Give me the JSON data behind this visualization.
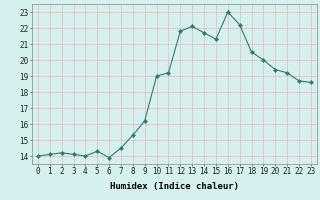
{
  "x": [
    0,
    1,
    2,
    3,
    4,
    5,
    6,
    7,
    8,
    9,
    10,
    11,
    12,
    13,
    14,
    15,
    16,
    17,
    18,
    19,
    20,
    21,
    22,
    23
  ],
  "y": [
    14.0,
    14.1,
    14.2,
    14.1,
    14.0,
    14.3,
    13.9,
    14.5,
    15.3,
    16.2,
    19.0,
    19.2,
    21.8,
    22.1,
    21.7,
    21.3,
    23.0,
    22.2,
    20.5,
    20.0,
    19.4,
    19.2,
    18.7,
    18.6
  ],
  "line_color": "#2e7d6e",
  "marker": "D",
  "marker_size": 2,
  "bg_color": "#d6f0ef",
  "grid_color_major": "#e8b8b8",
  "grid_color_minor": "#e8b8b8",
  "title": "",
  "xlabel": "Humidex (Indice chaleur)",
  "ylabel": "",
  "xlim": [
    -0.5,
    23.5
  ],
  "ylim": [
    13.5,
    23.5
  ],
  "yticks": [
    14,
    15,
    16,
    17,
    18,
    19,
    20,
    21,
    22,
    23
  ],
  "xticks": [
    0,
    1,
    2,
    3,
    4,
    5,
    6,
    7,
    8,
    9,
    10,
    11,
    12,
    13,
    14,
    15,
    16,
    17,
    18,
    19,
    20,
    21,
    22,
    23
  ],
  "tick_fontsize": 5.5,
  "xlabel_fontsize": 6.5,
  "linewidth": 0.8
}
